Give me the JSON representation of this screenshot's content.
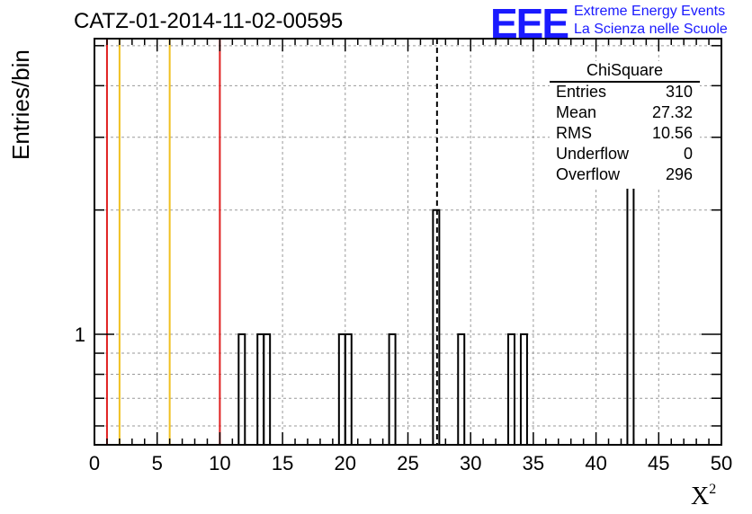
{
  "title": "CATZ-01-2014-11-02-00595",
  "logo": {
    "mark": "EEE",
    "line1": "Extreme Energy Events",
    "line2": "La Scienza nelle Scuole"
  },
  "colors": {
    "frame": "#000000",
    "grid": "#9a9a9a",
    "red_line": "#e02020",
    "yellow_line": "#f0c020",
    "mean_line": "#000000",
    "logo": "#1a1aff"
  },
  "stats": {
    "title": "ChiSquare",
    "rows": [
      {
        "key": "Entries",
        "value": "310"
      },
      {
        "key": "Mean",
        "value": "27.32"
      },
      {
        "key": "RMS",
        "value": "10.56"
      },
      {
        "key": "Underflow",
        "value": "0"
      },
      {
        "key": "Overflow",
        "value": "296"
      }
    ]
  },
  "chart_data": {
    "type": "bar",
    "ylabel": "Entries/bin",
    "xlabel": "X",
    "xlabel_sup": "2",
    "xlim": [
      0,
      50
    ],
    "y_scale": "log",
    "ylim": [
      0.54,
      5.2
    ],
    "x_ticks": [
      0,
      5,
      10,
      15,
      20,
      25,
      30,
      35,
      40,
      45,
      50
    ],
    "y_tick_labels": [
      {
        "value": 1,
        "label": "1"
      }
    ],
    "grid": true,
    "bin_width": 0.5,
    "bins": [
      {
        "x0": 11.5,
        "count": 1
      },
      {
        "x0": 13.0,
        "count": 1
      },
      {
        "x0": 13.5,
        "count": 1
      },
      {
        "x0": 19.5,
        "count": 1
      },
      {
        "x0": 20.0,
        "count": 1
      },
      {
        "x0": 23.5,
        "count": 1
      },
      {
        "x0": 27.0,
        "count": 2
      },
      {
        "x0": 29.0,
        "count": 1
      },
      {
        "x0": 33.0,
        "count": 1
      },
      {
        "x0": 34.0,
        "count": 1
      },
      {
        "x0": 42.5,
        "count": 3
      }
    ],
    "vertical_lines": [
      {
        "x": 1,
        "color": "red"
      },
      {
        "x": 2,
        "color": "yellow"
      },
      {
        "x": 6,
        "color": "yellow"
      },
      {
        "x": 10,
        "color": "red"
      },
      {
        "x": 27.32,
        "color": "black",
        "style": "dashed"
      }
    ]
  }
}
